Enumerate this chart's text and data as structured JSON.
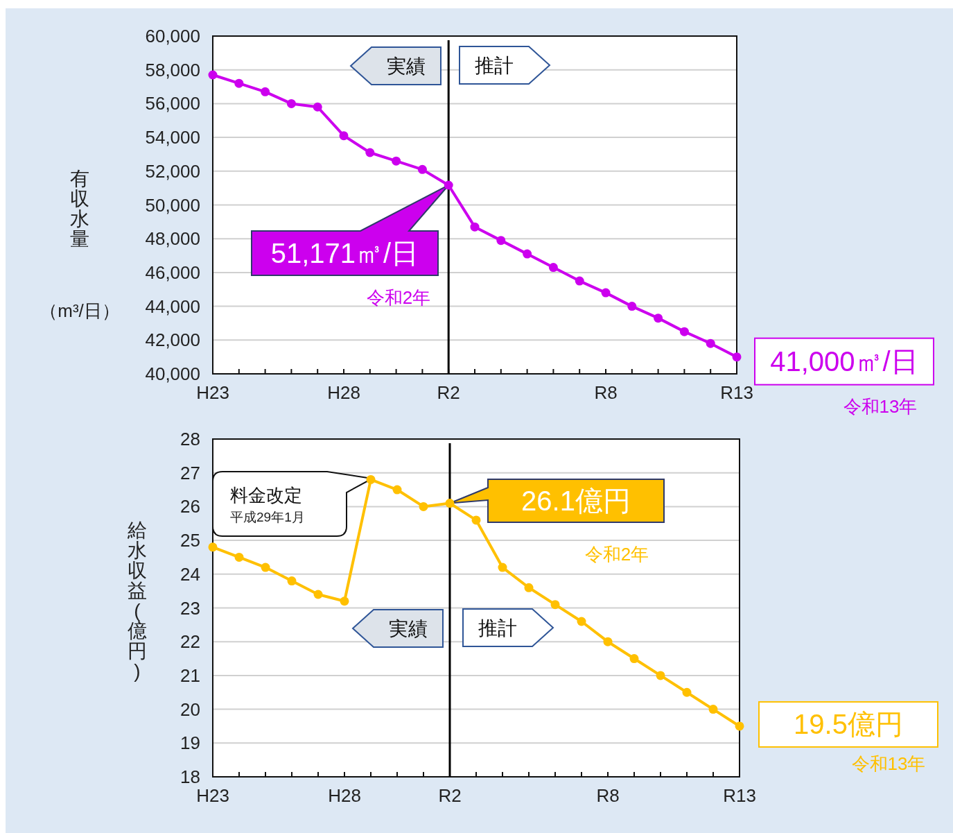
{
  "chart_data": [
    {
      "type": "line",
      "ylabel": "有収水量",
      "categories": [
        "H23",
        null,
        null,
        null,
        null,
        "H28",
        null,
        null,
        null,
        "R2",
        null,
        null,
        null,
        null,
        null,
        "R8",
        null,
        null,
        null,
        null,
        "R13"
      ],
      "series": [
        {
          "color": "#cc00ee",
          "values": [
            57700,
            57200,
            56700,
            56000,
            55800,
            54100,
            53100,
            52600,
            52100,
            51171,
            48700,
            47900,
            47100,
            46300,
            45500,
            44800,
            44000,
            43300,
            42500,
            41800,
            41000
          ]
        }
      ],
      "ylim": [
        40000,
        60000
      ],
      "yticks": [
        {
          "value": 40000,
          "label": "40,000"
        },
        {
          "value": 42000,
          "label": "42,000"
        },
        {
          "value": 44000,
          "label": "44,000"
        },
        {
          "value": 46000,
          "label": "46,000"
        },
        {
          "value": 48000,
          "label": "48,000"
        },
        {
          "value": 50000,
          "label": "50,000"
        },
        {
          "value": 52000,
          "label": "52,000"
        },
        {
          "value": 54000,
          "label": "54,000"
        },
        {
          "value": 56000,
          "label": "56,000"
        },
        {
          "value": 58000,
          "label": "58,000"
        },
        {
          "value": 60000,
          "label": "60,000"
        }
      ],
      "grid": "y",
      "marker": "circle",
      "ref_lines": [
        {
          "axis": "x",
          "value": "R2",
          "color": "#000000"
        }
      ],
      "annotations": [
        "実績",
        "推計",
        {
          "text": "51,171㎥/日",
          "x": "R2",
          "y": 51171
        },
        "令和2年",
        {
          "text": "41,000㎥/日",
          "x": "R13",
          "y": 41000
        },
        "令和13年",
        "（m³/日）"
      ]
    },
    {
      "type": "line",
      "ylabel": "給水収益(億円)",
      "categories": [
        "H23",
        null,
        null,
        null,
        null,
        "H28",
        null,
        null,
        null,
        "R2",
        null,
        null,
        null,
        null,
        null,
        "R8",
        null,
        null,
        null,
        null,
        "R13"
      ],
      "series": [
        {
          "color": "#ffc000",
          "values": [
            24.8,
            24.5,
            24.2,
            23.8,
            23.4,
            23.2,
            26.8,
            26.5,
            26.0,
            26.1,
            25.6,
            24.2,
            23.6,
            23.1,
            22.6,
            22.0,
            21.5,
            21.0,
            20.5,
            20.0,
            19.5
          ]
        }
      ],
      "ylim": [
        18,
        28
      ],
      "yticks": [
        18,
        19,
        20,
        21,
        22,
        23,
        24,
        25,
        26,
        27,
        28
      ],
      "grid": "y",
      "marker": "circle",
      "ref_lines": [
        {
          "axis": "x",
          "value": "R2",
          "color": "#000000"
        }
      ],
      "annotations": [
        "料金改定",
        "平成29年1月",
        {
          "text": "26.1億円",
          "x": "R2",
          "y": 26.1
        },
        "令和2年",
        "実績",
        "推計",
        {
          "text": "19.5億円",
          "x": "R13",
          "y": 19.5
        },
        "令和13年"
      ]
    }
  ]
}
